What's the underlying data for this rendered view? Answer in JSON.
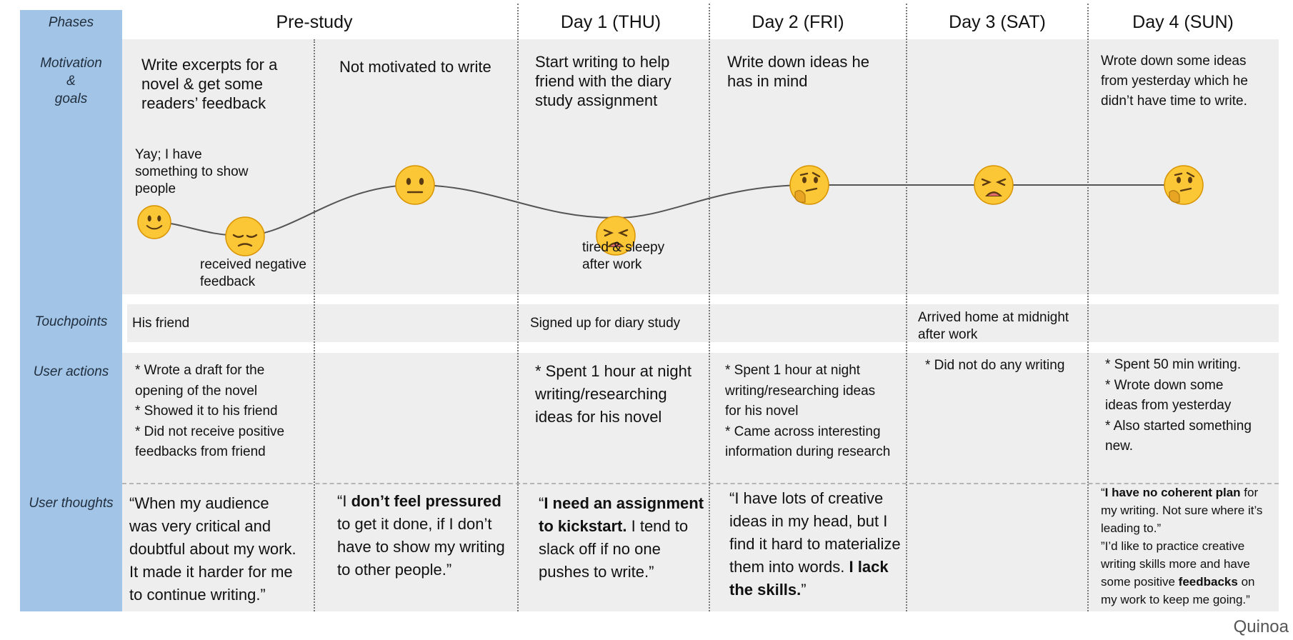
{
  "rows": {
    "phases": "Phases",
    "motivation": [
      "Motivation",
      "&",
      "goals"
    ],
    "touchpoints": "Touchpoints",
    "actions": "User actions",
    "thoughts": "User thoughts"
  },
  "columns": [
    {
      "id": "prestudy",
      "label": "Pre-study"
    },
    {
      "id": "day1",
      "label": "Day 1 (THU)"
    },
    {
      "id": "day2",
      "label": "Day 2 (FRI)"
    },
    {
      "id": "day3",
      "label": "Day 3 (SAT)"
    },
    {
      "id": "day4",
      "label": "Day 4 (SUN)"
    }
  ],
  "motivation": {
    "prestudy_a": [
      "Write excerpts for a",
      "novel & get some",
      "readers’ feedback"
    ],
    "prestudy_b": "Not motivated to write",
    "day1": [
      "Start writing to help",
      "friend with the diary",
      "study assignment"
    ],
    "day2": [
      "Write down ideas he",
      "has in mind"
    ],
    "day4": [
      "Wrote down some ideas",
      "from yesterday which he",
      "didn’t have time to write."
    ]
  },
  "annotations": {
    "happy": [
      "Yay; I have",
      "something to show",
      "people"
    ],
    "negative": [
      "received negative",
      "feedback"
    ],
    "tired": [
      "tired & sleepy",
      "after work"
    ]
  },
  "emotions": [
    {
      "name": "slightly-smiling",
      "level": 2,
      "face": "smile"
    },
    {
      "name": "pensive",
      "level": 1,
      "face": "pensive"
    },
    {
      "name": "neutral",
      "level": 3,
      "face": "neutral"
    },
    {
      "name": "weary",
      "level": 1,
      "face": "weary"
    },
    {
      "name": "thinking",
      "level": 3,
      "face": "thinking"
    },
    {
      "name": "weary",
      "level": 3,
      "face": "weary"
    },
    {
      "name": "thinking",
      "level": 3,
      "face": "thinking"
    }
  ],
  "touchpoints": {
    "prestudy": "His friend",
    "day1": "Signed up for diary study",
    "day3": [
      "Arrived home at midnight",
      "after work"
    ]
  },
  "actions": {
    "prestudy": [
      "* Wrote a draft for the",
      "opening of the novel",
      "* Showed it to his friend",
      "* Did not receive positive",
      "feedbacks from friend"
    ],
    "day1": [
      "* Spent 1 hour at night",
      "writing/researching",
      "ideas for his novel"
    ],
    "day2": [
      "* Spent 1 hour at night",
      "writing/researching ideas",
      "for his novel",
      "* Came across interesting",
      "information during research"
    ],
    "day3": "* Did not do any writing",
    "day4": [
      "* Spent 50 min writing.",
      "* Wrote down some",
      "ideas from yesterday",
      "* Also started something",
      "new."
    ]
  },
  "thoughts": {
    "prestudy_a": [
      "“When my audience",
      "was very critical and",
      "doubtful about my work.",
      "It made it harder for me",
      "to continue writing.”"
    ],
    "prestudy_b": {
      "pre": "“I ",
      "bold": "don’t feel pressured",
      "lines": [
        "to get it done, if I don’t",
        "have to show my writing",
        "to other people.”"
      ]
    },
    "day1": {
      "pre": "“",
      "bold": [
        "I need an assignment",
        "to kickstart."
      ],
      "rest": [
        " I tend to",
        "slack off if no one",
        "pushes to write.”"
      ]
    },
    "day2": {
      "lines": [
        "“I have lots of creative",
        "ideas in my head, but I",
        "find it hard to materialize"
      ],
      "mid": "them into words. ",
      "bold1": "I lack",
      "bold2": "the skills.",
      "end": "”"
    },
    "day4": {
      "q1_pre": "“",
      "q1_bold": "I have no coherent plan",
      "q1_post": " for",
      "q1_lines": [
        "my writing. Not sure where it’s",
        "leading to.”"
      ],
      "q2_lines": [
        "”I’d like to practice creative",
        "writing skills more and have"
      ],
      "q2_pre": "some positive ",
      "q2_bold": "feedbacks",
      "q2_post": " on",
      "q2_end": "my work to keep me going.”"
    }
  },
  "brand": "Quinoa",
  "colors": {
    "sidebar": "#a2c4e6",
    "cell": "#eeeeee",
    "emoji": "#fbc737"
  }
}
